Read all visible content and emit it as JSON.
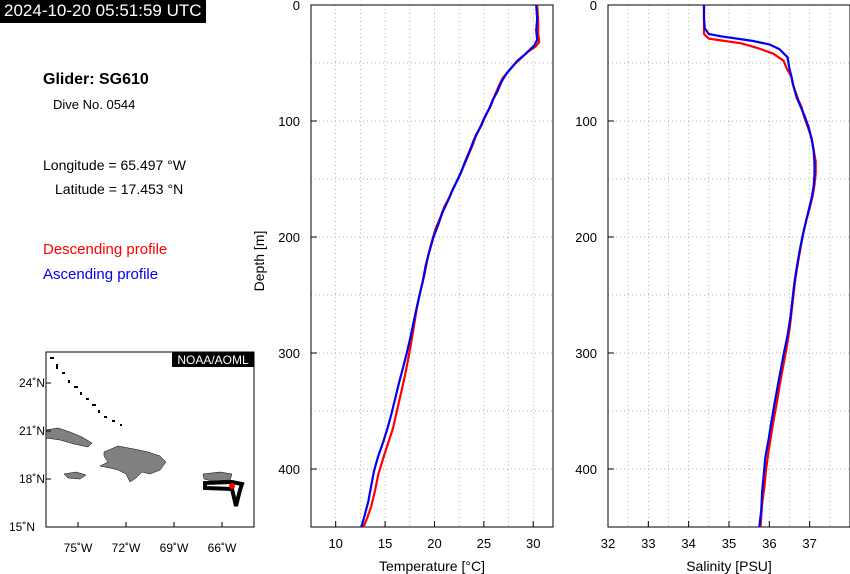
{
  "header": {
    "timestamp": "2024-10-20 05:51:59 UTC",
    "glider": "Glider: SG610",
    "dive": "Dive No. 0544",
    "longitude": "Longitude = 65.497 °W",
    "latitude": "Latitude = 17.453 °N",
    "desc_label": "Descending profile",
    "asc_label": "Ascending profile"
  },
  "map": {
    "credit": "NOAA/AOML",
    "lat_ticks": [
      "24˚N",
      "21˚N",
      "18˚N",
      "15˚N"
    ],
    "lon_ticks": [
      "75˚W",
      "72˚W",
      "69˚W",
      "66˚W"
    ]
  },
  "colors": {
    "descending": "#ff0000",
    "ascending": "#0000ee",
    "land": "#808080"
  },
  "chart_data": [
    {
      "type": "line",
      "xlabel": "Temperature [°C]",
      "ylabel": "Depth [m]",
      "xlim": [
        7.5,
        32
      ],
      "ylim": [
        450,
        0
      ],
      "x_ticks": [
        10,
        15,
        20,
        25,
        30
      ],
      "y_ticks": [
        0,
        100,
        200,
        300,
        400
      ],
      "grid": true,
      "series": [
        {
          "name": "Descending profile",
          "color": "#ff0000",
          "points": [
            [
              30.4,
              0
            ],
            [
              30.5,
              15
            ],
            [
              30.5,
              25
            ],
            [
              30.6,
              32
            ],
            [
              30.2,
              36
            ],
            [
              29.5,
              40
            ],
            [
              29.0,
              44
            ],
            [
              28.5,
              48
            ],
            [
              28.0,
              52
            ],
            [
              27.5,
              57
            ],
            [
              26.9,
              63
            ],
            [
              26.5,
              70
            ],
            [
              26.1,
              78
            ],
            [
              25.7,
              87
            ],
            [
              25.2,
              95
            ],
            [
              24.8,
              103
            ],
            [
              24.2,
              112
            ],
            [
              23.9,
              120
            ],
            [
              23.4,
              130
            ],
            [
              22.9,
              140
            ],
            [
              22.5,
              148
            ],
            [
              21.9,
              158
            ],
            [
              21.5,
              166
            ],
            [
              21.0,
              174
            ],
            [
              20.6,
              183
            ],
            [
              20.1,
              193
            ],
            [
              19.7,
              205
            ],
            [
              19.3,
              218
            ],
            [
              19.0,
              232
            ],
            [
              18.6,
              246
            ],
            [
              18.2,
              262
            ],
            [
              17.9,
              278
            ],
            [
              17.6,
              293
            ],
            [
              17.3,
              307
            ],
            [
              17.0,
              320
            ],
            [
              16.6,
              335
            ],
            [
              16.2,
              350
            ],
            [
              15.8,
              365
            ],
            [
              15.3,
              378
            ],
            [
              14.8,
              391
            ],
            [
              14.3,
              405
            ],
            [
              14.0,
              418
            ],
            [
              13.6,
              432
            ],
            [
              13.2,
              442
            ],
            [
              12.8,
              450
            ]
          ]
        },
        {
          "name": "Ascending profile",
          "color": "#0000ee",
          "points": [
            [
              30.3,
              0
            ],
            [
              30.4,
              12
            ],
            [
              30.3,
              22
            ],
            [
              30.4,
              30
            ],
            [
              30.1,
              35
            ],
            [
              29.6,
              39
            ],
            [
              29.1,
              43
            ],
            [
              28.4,
              48
            ],
            [
              27.9,
              53
            ],
            [
              27.3,
              59
            ],
            [
              26.8,
              66
            ],
            [
              26.4,
              74
            ],
            [
              25.9,
              82
            ],
            [
              25.5,
              90
            ],
            [
              25.0,
              98
            ],
            [
              24.6,
              106
            ],
            [
              24.0,
              116
            ],
            [
              23.6,
              125
            ],
            [
              23.1,
              135
            ],
            [
              22.7,
              144
            ],
            [
              22.2,
              153
            ],
            [
              21.7,
              162
            ],
            [
              21.3,
              170
            ],
            [
              20.8,
              179
            ],
            [
              20.4,
              189
            ],
            [
              19.9,
              200
            ],
            [
              19.5,
              212
            ],
            [
              19.1,
              225
            ],
            [
              18.8,
              239
            ],
            [
              18.4,
              253
            ],
            [
              18.0,
              269
            ],
            [
              17.6,
              285
            ],
            [
              17.2,
              300
            ],
            [
              16.8,
              313
            ],
            [
              16.4,
              326
            ],
            [
              16.0,
              340
            ],
            [
              15.6,
              354
            ],
            [
              15.2,
              366
            ],
            [
              14.8,
              377
            ],
            [
              14.3,
              389
            ],
            [
              13.9,
              401
            ],
            [
              13.6,
              414
            ],
            [
              13.3,
              428
            ],
            [
              12.9,
              441
            ],
            [
              12.6,
              450
            ]
          ]
        }
      ]
    },
    {
      "type": "line",
      "xlabel": "Salinity [PSU]",
      "ylabel": "",
      "xlim": [
        32,
        38
      ],
      "ylim": [
        450,
        0
      ],
      "x_ticks": [
        32,
        33,
        34,
        35,
        36,
        37
      ],
      "y_ticks": [
        0,
        100,
        200,
        300,
        400
      ],
      "grid": true,
      "series": [
        {
          "name": "Descending profile",
          "color": "#ff0000",
          "points": [
            [
              34.38,
              0
            ],
            [
              34.38,
              15
            ],
            [
              34.38,
              25
            ],
            [
              34.5,
              29
            ],
            [
              34.9,
              31
            ],
            [
              35.3,
              33
            ],
            [
              35.7,
              37
            ],
            [
              36.1,
              42
            ],
            [
              36.35,
              48
            ],
            [
              36.45,
              56
            ],
            [
              36.55,
              62
            ],
            [
              36.58,
              68
            ],
            [
              36.65,
              75
            ],
            [
              36.72,
              82
            ],
            [
              36.8,
              88
            ],
            [
              36.85,
              95
            ],
            [
              36.95,
              105
            ],
            [
              37.05,
              115
            ],
            [
              37.1,
              125
            ],
            [
              37.15,
              135
            ],
            [
              37.15,
              145
            ],
            [
              37.12,
              155
            ],
            [
              37.07,
              165
            ],
            [
              37.0,
              175
            ],
            [
              36.92,
              185
            ],
            [
              36.85,
              195
            ],
            [
              36.78,
              208
            ],
            [
              36.72,
              220
            ],
            [
              36.65,
              235
            ],
            [
              36.6,
              250
            ],
            [
              36.55,
              265
            ],
            [
              36.5,
              280
            ],
            [
              36.43,
              295
            ],
            [
              36.35,
              310
            ],
            [
              36.27,
              325
            ],
            [
              36.2,
              340
            ],
            [
              36.12,
              355
            ],
            [
              36.05,
              370
            ],
            [
              35.98,
              385
            ],
            [
              35.92,
              400
            ],
            [
              35.88,
              415
            ],
            [
              35.82,
              430
            ],
            [
              35.78,
              450
            ]
          ]
        },
        {
          "name": "Ascending profile",
          "color": "#0000ee",
          "points": [
            [
              34.38,
              0
            ],
            [
              34.38,
              12
            ],
            [
              34.4,
              20
            ],
            [
              34.5,
              25
            ],
            [
              34.8,
              27
            ],
            [
              35.2,
              29
            ],
            [
              35.6,
              31
            ],
            [
              36.0,
              34
            ],
            [
              36.25,
              38
            ],
            [
              36.45,
              45
            ],
            [
              36.5,
              55
            ],
            [
              36.55,
              62
            ],
            [
              36.6,
              70
            ],
            [
              36.68,
              80
            ],
            [
              36.78,
              88
            ],
            [
              36.88,
              96
            ],
            [
              36.98,
              106
            ],
            [
              37.05,
              116
            ],
            [
              37.1,
              126
            ],
            [
              37.12,
              136
            ],
            [
              37.12,
              146
            ],
            [
              37.1,
              156
            ],
            [
              37.05,
              166
            ],
            [
              36.98,
              176
            ],
            [
              36.9,
              188
            ],
            [
              36.82,
              200
            ],
            [
              36.75,
              212
            ],
            [
              36.68,
              226
            ],
            [
              36.62,
              240
            ],
            [
              36.57,
              255
            ],
            [
              36.52,
              270
            ],
            [
              36.45,
              285
            ],
            [
              36.36,
              300
            ],
            [
              36.28,
              315
            ],
            [
              36.2,
              330
            ],
            [
              36.12,
              345
            ],
            [
              36.05,
              360
            ],
            [
              35.98,
              375
            ],
            [
              35.9,
              390
            ],
            [
              35.86,
              405
            ],
            [
              35.82,
              420
            ],
            [
              35.8,
              435
            ],
            [
              35.75,
              450
            ]
          ]
        }
      ]
    }
  ]
}
